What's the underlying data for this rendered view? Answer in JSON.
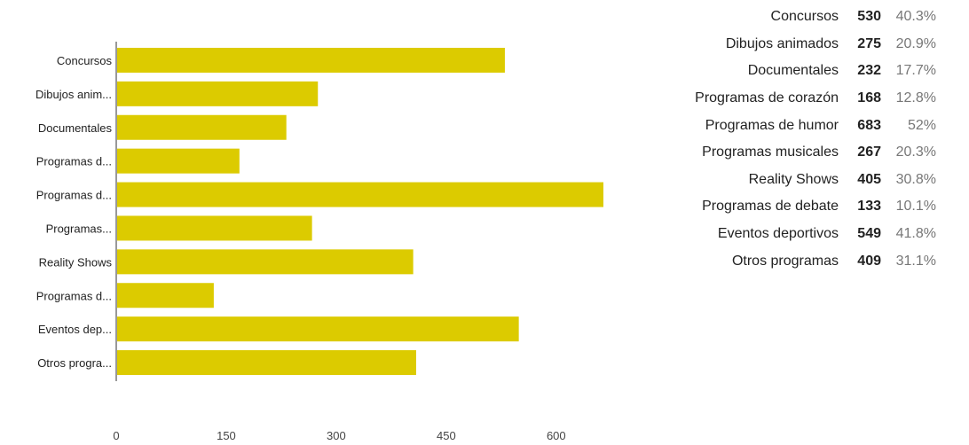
{
  "chart_data": {
    "type": "bar",
    "orientation": "horizontal",
    "categories": [
      "Concursos",
      "Dibujos animados",
      "Documentales",
      "Programas de corazón",
      "Programas de humor",
      "Programas musicales",
      "Reality Shows",
      "Programas de debate",
      "Eventos deportivos",
      "Otros programas"
    ],
    "category_tick_labels": [
      "Concursos",
      "Dibujos anim...",
      "Documentales",
      "Programas d...",
      "Programas d...",
      "Programas...",
      "Reality Shows",
      "Programas d...",
      "Eventos dep...",
      "Otros progra..."
    ],
    "values": [
      530,
      275,
      232,
      168,
      683,
      267,
      405,
      133,
      549,
      409
    ],
    "percents": [
      "40.3%",
      "20.9%",
      "17.7%",
      "12.8%",
      "52%",
      "20.3%",
      "30.8%",
      "10.1%",
      "41.8%",
      "31.1%"
    ],
    "x_ticks": [
      0,
      150,
      300,
      450,
      600
    ],
    "xlim": [
      0,
      760
    ],
    "grid": false,
    "legend": "none",
    "bar_color": "#dccb00",
    "title": "",
    "xlabel": "",
    "ylabel": ""
  }
}
